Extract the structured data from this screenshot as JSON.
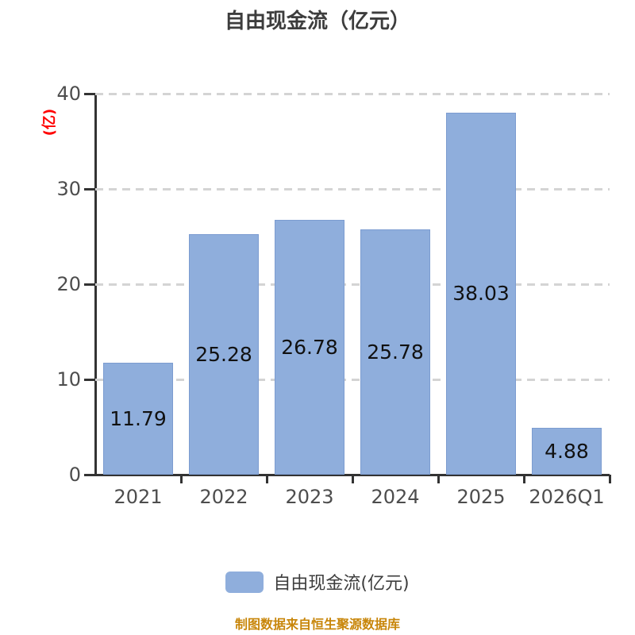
{
  "title": "自由现金流（亿元）",
  "y_axis_unit": "(亿)",
  "legend": {
    "label": "自由现金流(亿元)"
  },
  "source_note": "制图数据来自恒生聚源数据库",
  "colors": {
    "bar_fill": "#8FAEDC",
    "bar_border": "#7C9CD0",
    "grid": "#D4D4D4",
    "axis": "#333333",
    "tick_label": "#4D4D4D",
    "title": "#3D3D3D",
    "value_label": "#111111",
    "y_unit": "#FF0000",
    "legend_text": "#3D3D3D",
    "source_text": "#C8860A"
  },
  "chart_data": {
    "type": "bar",
    "title": "自由现金流（亿元）",
    "categories": [
      "2021",
      "2022",
      "2023",
      "2024",
      "2025",
      "2026Q1"
    ],
    "series": [
      {
        "name": "自由现金流(亿元)",
        "values": [
          11.79,
          25.28,
          26.78,
          25.78,
          38.03,
          4.88
        ]
      }
    ],
    "value_labels": [
      "11.79",
      "25.28",
      "26.78",
      "25.78",
      "38.03",
      "4.88"
    ],
    "xlabel": "",
    "ylabel": "(亿)",
    "ylim": [
      0,
      40
    ],
    "yticks": [
      0,
      10,
      20,
      30,
      40
    ],
    "grid": "horizontal-dashed",
    "legend_position": "bottom"
  }
}
